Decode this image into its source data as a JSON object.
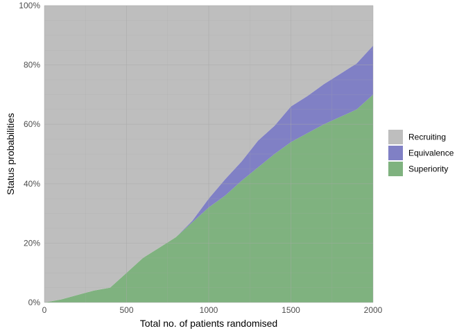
{
  "chart_data": {
    "type": "area",
    "stacked": true,
    "xlabel": "Total no. of patients randomised",
    "ylabel": "Status probabilities",
    "xlim": [
      0,
      2000
    ],
    "ylim": [
      0,
      100
    ],
    "x_ticks": [
      0,
      500,
      1000,
      1500,
      2000
    ],
    "x_tick_labels": [
      "0",
      "500",
      "1000",
      "1500",
      "2000"
    ],
    "y_ticks": [
      0,
      20,
      40,
      60,
      80,
      100
    ],
    "y_tick_labels": [
      "0%",
      "20%",
      "40%",
      "60%",
      "80%",
      "100%"
    ],
    "grid": true,
    "legend_position": "right",
    "legend": [
      "Recruiting",
      "Equivalence",
      "Superiority"
    ],
    "x": [
      0,
      100,
      200,
      300,
      400,
      500,
      600,
      700,
      800,
      900,
      1000,
      1100,
      1200,
      1300,
      1400,
      1500,
      1600,
      1700,
      1800,
      1900,
      2000
    ],
    "series": [
      {
        "name": "Superiority",
        "color": "#7fb27f",
        "values": [
          0,
          1,
          2.5,
          4,
          5,
          10,
          15,
          18.5,
          22,
          27,
          32,
          36,
          41,
          45.5,
          50,
          54,
          57,
          60,
          62.5,
          65,
          70
        ]
      },
      {
        "name": "Equivalence",
        "color": "#8080c5",
        "values": [
          0,
          0,
          0,
          0,
          0,
          0,
          0,
          0,
          0,
          0.5,
          3,
          5.5,
          6.5,
          9,
          9.5,
          12,
          12.5,
          13.5,
          14.5,
          15.5,
          16.5
        ]
      },
      {
        "name": "Recruiting",
        "color": "#bebebe",
        "values": [
          100,
          99,
          97.5,
          96,
          95,
          90,
          85,
          81.5,
          78,
          72.5,
          65,
          58.5,
          52.5,
          45.5,
          40.5,
          34,
          30.5,
          26.5,
          23,
          19.5,
          13.5
        ]
      }
    ]
  }
}
